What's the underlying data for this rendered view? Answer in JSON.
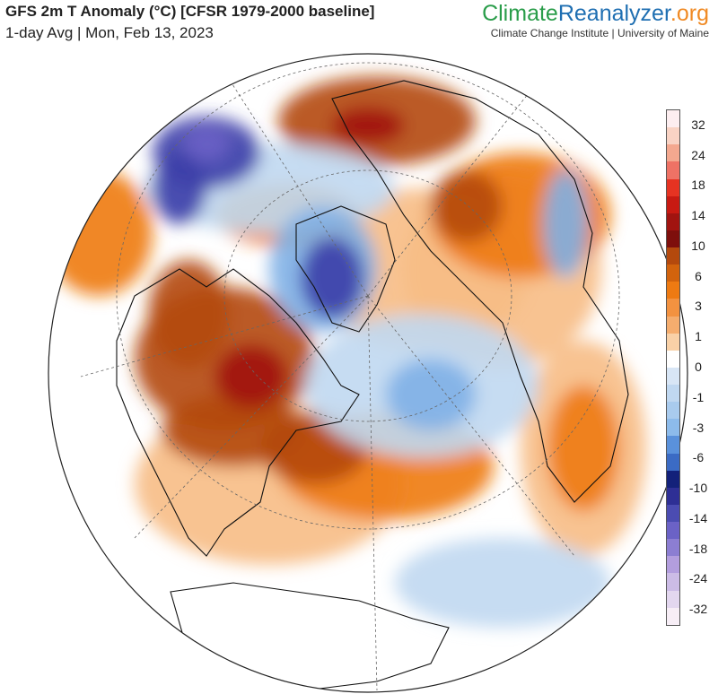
{
  "header": {
    "title": "GFS 2m T Anomaly (°C) [CFSR 1979-2000 baseline]",
    "subtitle": "1-day Avg | Mon, Feb 13, 2023"
  },
  "brand": {
    "logo_part1": "Climate",
    "logo_part2": "Reanalyzer",
    "logo_part3": ".org",
    "logo_colors": [
      "#2a9d4a",
      "#1f6fb2",
      "#f08a24"
    ],
    "tagline": "Climate Change Institute | University of Maine"
  },
  "legend": {
    "colors": [
      "#fdeef0",
      "#f9d3c4",
      "#f4a88f",
      "#ef7265",
      "#e63322",
      "#c81a12",
      "#a11410",
      "#7e0f0c",
      "#b4490d",
      "#d2630d",
      "#ee7a12",
      "#f39240",
      "#f5ad6e",
      "#f9d1a7",
      "#ffffff",
      "#d8e6f6",
      "#c0d8f1",
      "#a9cbee",
      "#8dbbeb",
      "#5a91db",
      "#3b6bc4",
      "#13217a",
      "#2e2f95",
      "#4b4cb2",
      "#6b62c6",
      "#8c7ed2",
      "#b39ede",
      "#ccbce6",
      "#e3d7ef",
      "#f7eef6"
    ],
    "labels": [
      "32",
      "24",
      "18",
      "14",
      "10",
      "6",
      "3",
      "1",
      "0",
      "-1",
      "-3",
      "-6",
      "-10",
      "-14",
      "-18",
      "-24",
      "-32"
    ]
  },
  "map": {
    "colors": {
      "ocean_base": "#ffffff",
      "warm_light": "#f7bd85",
      "warm_mid": "#ee7a12",
      "warm_strong": "#b4490d",
      "warm_extreme": "#a11410",
      "cool_light": "#c0d8f1",
      "cool_mid": "#7fb0e6",
      "cool_strong": "#3b3ea8",
      "cold_extreme": "#6b62c6",
      "coastline": "#111111",
      "graticule": "#666666"
    }
  }
}
